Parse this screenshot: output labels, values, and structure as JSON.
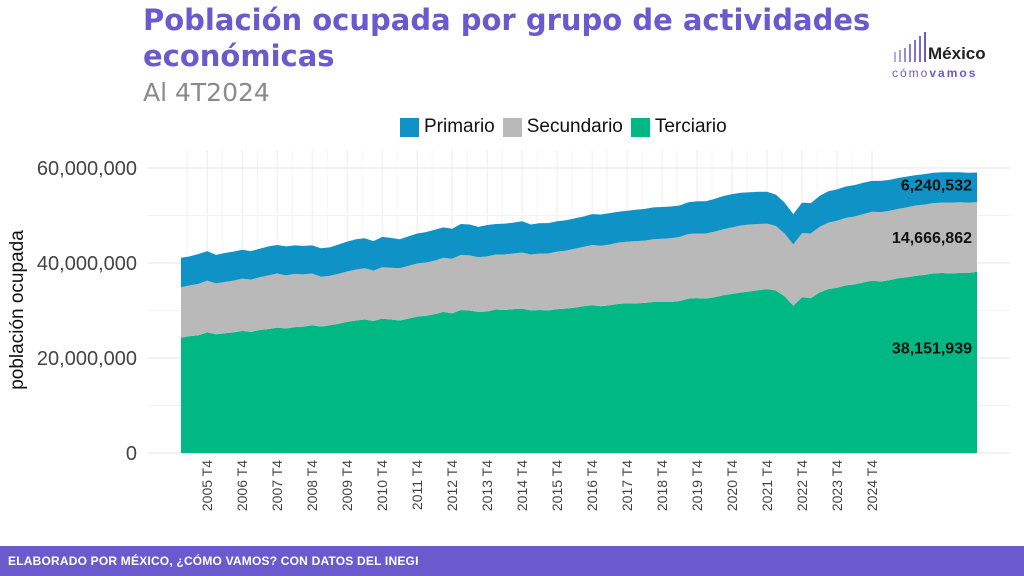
{
  "title": "Población ocupada por grupo de actividades económicas",
  "subtitle": "Al 4T2024",
  "logo": {
    "main": "México",
    "sub_light": "cómo",
    "sub_bold": "vamos"
  },
  "footer": "ELABORADO POR MÉXICO, ¿CÓMO VAMOS? CON DATOS DEL INEGI",
  "colors": {
    "primario": "#0f93c6",
    "secundario": "#b9b9b9",
    "terciario": "#00b884",
    "brand": "#6a5acd"
  },
  "chart_data": {
    "type": "area",
    "stacked": true,
    "ylabel": "población ocupada",
    "xlabel": "",
    "ylim": [
      0,
      60000000
    ],
    "yticks": [
      0,
      20000000,
      40000000,
      60000000
    ],
    "ytick_labels": [
      "0",
      "20,000,000",
      "40,000,000",
      "60,000,000"
    ],
    "x_tick_labels": [
      "2005 T4",
      "2006 T4",
      "2007 T4",
      "2008 T4",
      "2009 T4",
      "2010 T4",
      "2011 T4",
      "2012 T4",
      "2013 T4",
      "2014 T4",
      "2015 T4",
      "2016 T4",
      "2017 T4",
      "2018 T4",
      "2019 T4",
      "2020 T4",
      "2021 T4",
      "2022 T4",
      "2023 T4",
      "2024 T4"
    ],
    "x_start": "2005 T1",
    "x_end": "2024 T4",
    "legend_position": "top",
    "series": [
      {
        "name": "Terciario",
        "annotation": "38,151,939",
        "values": [
          24.3,
          24.6,
          24.8,
          25.4,
          25.0,
          25.2,
          25.4,
          25.7,
          25.5,
          25.9,
          26.1,
          26.4,
          26.2,
          26.5,
          26.6,
          26.9,
          26.6,
          26.9,
          27.2,
          27.6,
          27.9,
          28.1,
          27.8,
          28.3,
          28.1,
          27.9,
          28.3,
          28.7,
          28.9,
          29.2,
          29.7,
          29.4,
          30.1,
          30.0,
          29.7,
          29.8,
          30.2,
          30.1,
          30.3,
          30.4,
          30.0,
          30.1,
          30.0,
          30.3,
          30.4,
          30.6,
          30.9,
          31.1,
          30.9,
          31.1,
          31.4,
          31.5,
          31.5,
          31.6,
          31.8,
          31.8,
          31.8,
          32.0,
          32.5,
          32.6,
          32.5,
          32.8,
          33.2,
          33.5,
          33.8,
          34.0,
          34.3,
          34.5,
          34.2,
          33.0,
          31.0,
          32.8,
          32.6,
          33.8,
          34.5,
          34.8,
          35.3,
          35.5,
          35.9,
          36.3,
          36.1,
          36.4,
          36.8,
          37.0,
          37.3,
          37.5,
          37.8,
          37.9,
          37.8,
          37.9,
          37.9,
          38.15
        ]
      },
      {
        "name": "Secundario",
        "annotation": "14,666,862",
        "values": [
          10.6,
          10.7,
          10.8,
          10.9,
          10.7,
          10.8,
          10.9,
          11.0,
          11.0,
          11.1,
          11.3,
          11.4,
          11.2,
          11.2,
          11.0,
          10.9,
          10.5,
          10.4,
          10.5,
          10.6,
          10.7,
          10.8,
          10.6,
          10.8,
          10.9,
          11.0,
          11.1,
          11.2,
          11.2,
          11.3,
          11.4,
          11.5,
          11.6,
          11.6,
          11.5,
          11.6,
          11.6,
          11.7,
          11.7,
          11.8,
          11.8,
          11.9,
          12.0,
          12.1,
          12.2,
          12.4,
          12.5,
          12.7,
          12.7,
          12.8,
          12.9,
          13.0,
          13.1,
          13.1,
          13.2,
          13.3,
          13.4,
          13.5,
          13.6,
          13.6,
          13.7,
          13.8,
          13.9,
          14.0,
          14.1,
          14.1,
          13.9,
          13.8,
          13.6,
          13.2,
          12.9,
          13.5,
          13.6,
          13.8,
          14.0,
          14.1,
          14.2,
          14.3,
          14.4,
          14.5,
          14.6,
          14.6,
          14.6,
          14.7,
          14.8,
          14.8,
          14.8,
          14.8,
          14.9,
          14.9,
          14.8,
          14.67
        ]
      },
      {
        "name": "Primario",
        "annotation": "6,240,532",
        "values": [
          6.2,
          6.1,
          6.3,
          6.2,
          6.0,
          6.1,
          6.1,
          6.1,
          6.0,
          6.0,
          6.1,
          6.0,
          6.1,
          6.0,
          6.0,
          5.9,
          6.0,
          6.0,
          6.2,
          6.3,
          6.4,
          6.3,
          6.2,
          6.4,
          6.3,
          6.1,
          6.2,
          6.3,
          6.4,
          6.5,
          6.4,
          6.3,
          6.5,
          6.5,
          6.4,
          6.6,
          6.4,
          6.5,
          6.5,
          6.6,
          6.3,
          6.4,
          6.4,
          6.4,
          6.4,
          6.4,
          6.4,
          6.5,
          6.6,
          6.6,
          6.5,
          6.5,
          6.6,
          6.7,
          6.7,
          6.7,
          6.7,
          6.6,
          6.7,
          6.8,
          6.8,
          6.9,
          7.0,
          7.0,
          6.9,
          6.8,
          6.8,
          6.7,
          6.6,
          6.5,
          6.4,
          6.4,
          6.4,
          6.5,
          6.6,
          6.6,
          6.6,
          6.6,
          6.6,
          6.5,
          6.6,
          6.5,
          6.5,
          6.5,
          6.4,
          6.4,
          6.4,
          6.4,
          6.4,
          6.3,
          6.3,
          6.24
        ]
      }
    ],
    "values_unit": "millions"
  }
}
